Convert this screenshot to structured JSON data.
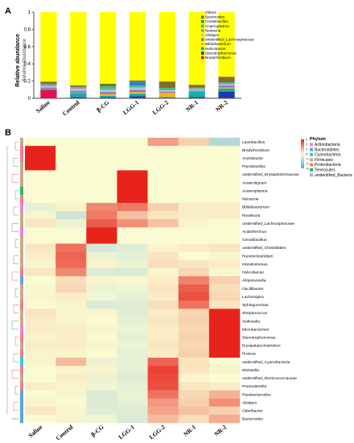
{
  "panels": {
    "a": "A",
    "b": "B"
  },
  "chart_data": [
    {
      "type": "bar",
      "stacked": true,
      "ylabel": "Relative abundance",
      "ylabel_inner": "Relative Abundance",
      "ylim": [
        0,
        1
      ],
      "yticks": [
        "0",
        "0.2",
        "0.4",
        "0.6",
        "0.8",
        "1"
      ],
      "categories": [
        "Saline",
        "Control",
        "β-CG",
        "LGG-1",
        "LGG-2",
        "NR-1",
        "NR-2"
      ],
      "series": [
        {
          "name": "Bradyrhizobium",
          "color": "#e8104c",
          "values": [
            0.095,
            0.003,
            0.003,
            0.003,
            0.003,
            0.003,
            0.003
          ]
        },
        {
          "name": "Stenotrophomonas",
          "color": "#1c3ab3",
          "values": [
            0.003,
            0.01,
            0.006,
            0.02,
            0.004,
            0.012,
            0.075
          ]
        },
        {
          "name": "Helicobacter",
          "color": "#0fb0a8",
          "values": [
            0.01,
            0.05,
            0.02,
            0.03,
            0.008,
            0.06,
            0.035
          ]
        },
        {
          "name": "Bifidobacterium",
          "color": "#f5b21a",
          "values": [
            0.004,
            0.004,
            0.02,
            0.02,
            0.05,
            0.004,
            0.012
          ]
        },
        {
          "name": "unidentified_Lachnospiraceae",
          "color": "#8f6fc4",
          "values": [
            0.012,
            0.02,
            0.022,
            0.022,
            0.012,
            0.012,
            0.02
          ]
        },
        {
          "name": "Alistipes",
          "color": "#b2bfe6",
          "values": [
            0.014,
            0.022,
            0.024,
            0.028,
            0.014,
            0.012,
            0.018
          ]
        },
        {
          "name": "Neisseria",
          "color": "#9c9c9c",
          "values": [
            0.02,
            0.016,
            0.014,
            0.012,
            0.012,
            0.012,
            0.01
          ]
        },
        {
          "name": "Anaeroplasma",
          "color": "#12d46a",
          "values": [
            0.003,
            0.006,
            0.026,
            0.014,
            0.014,
            0.006,
            0.01
          ]
        },
        {
          "name": "Cerasibacillus",
          "color": "#2f7dd6",
          "values": [
            0.003,
            0.004,
            0.003,
            0.045,
            0.003,
            0.004,
            0.003
          ]
        },
        {
          "name": "Bacteroides",
          "color": "#8a6a2a",
          "values": [
            0.03,
            0.014,
            0.03,
            0.012,
            0.075,
            0.032,
            0.064
          ]
        },
        {
          "name": "Others",
          "color": "#ffff00",
          "values": [
            0.806,
            0.851,
            0.832,
            0.794,
            0.805,
            0.845,
            0.75
          ]
        }
      ]
    },
    {
      "type": "heatmap",
      "columns": [
        "Saline",
        "Control",
        "β-CG",
        "LGG-1",
        "LGG-2",
        "NR-1",
        "NR-2"
      ],
      "rows": [
        {
          "name": "Lactobacillus",
          "phylum": "Firmicutes",
          "values": [
            0,
            0,
            0,
            0,
            1.3,
            0.6,
            -1.3
          ]
        },
        {
          "name": "Bradyrhizobium",
          "phylum": "Proteobacteria",
          "values": [
            3,
            0,
            0,
            0,
            0,
            0,
            0
          ]
        },
        {
          "name": "Acetobacter",
          "phylum": "Proteobacteria",
          "values": [
            3,
            0,
            0,
            0,
            0,
            0,
            0
          ]
        },
        {
          "name": "Paenibacillus",
          "phylum": "Firmicutes",
          "values": [
            3,
            0,
            0,
            0,
            0,
            0,
            0
          ]
        },
        {
          "name": "unidentified_Erysipelotrichaceae",
          "phylum": "Firmicutes",
          "values": [
            0,
            0,
            0,
            3,
            0,
            0,
            0
          ]
        },
        {
          "name": "Anaerotignum",
          "phylum": "Firmicutes",
          "values": [
            0,
            0,
            0,
            3,
            0,
            0,
            0
          ]
        },
        {
          "name": "Anaeroplasma",
          "phylum": "Tenericutes",
          "values": [
            0,
            0,
            0,
            3,
            0,
            0,
            0
          ]
        },
        {
          "name": "Neisseria",
          "phylum": "Proteobacteria",
          "values": [
            0,
            0,
            0,
            3,
            0,
            0,
            0
          ]
        },
        {
          "name": "Bifidobacterium",
          "phylum": "Actinobacteria",
          "values": [
            -0.4,
            0.1,
            1.6,
            1.8,
            0.6,
            0.2,
            0.2
          ]
        },
        {
          "name": "Roseburia",
          "phylum": "Firmicutes",
          "values": [
            0.1,
            -0.8,
            1.8,
            0.8,
            0.3,
            0.2,
            0.2
          ]
        },
        {
          "name": "unidentified_Lachnospiraceae",
          "phylum": "Firmicutes",
          "values": [
            0.3,
            -0.3,
            2.2,
            1.5,
            0.8,
            0.1,
            0.0
          ]
        },
        {
          "name": "Acidothermus",
          "phylum": "Actinobacteria",
          "values": [
            0,
            0,
            3,
            0,
            0,
            0,
            0
          ]
        },
        {
          "name": "Cerasibacillus",
          "phylum": "Firmicutes",
          "values": [
            0,
            0,
            3,
            0,
            0,
            0,
            0
          ]
        },
        {
          "name": "unidentified_Clostridiales",
          "phylum": "Firmicutes",
          "values": [
            0.3,
            1.9,
            -0.7,
            -0.5,
            0.1,
            0.2,
            0.3
          ]
        },
        {
          "name": "Ruminiclostridium",
          "phylum": "Firmicutes",
          "values": [
            0.2,
            2.1,
            -0.3,
            -0.4,
            0.3,
            0.0,
            0.1
          ]
        },
        {
          "name": "Intestinimonas",
          "phylum": "Firmicutes",
          "values": [
            0.1,
            2.0,
            0.1,
            -0.3,
            0.4,
            0.3,
            0.2
          ]
        },
        {
          "name": "Helicobacter",
          "phylum": "Proteobacteria",
          "values": [
            0.3,
            1.6,
            -0.6,
            -0.6,
            0.1,
            0.5,
            -0.1
          ]
        },
        {
          "name": "Alloprevotella",
          "phylum": "Bacteroidetes",
          "values": [
            0.0,
            0.4,
            0.1,
            -0.1,
            0.2,
            1.7,
            0.6
          ]
        },
        {
          "name": "Oscillibacter",
          "phylum": "Firmicutes",
          "values": [
            -0.1,
            0.5,
            -0.3,
            -0.2,
            0.3,
            2.2,
            0.4
          ]
        },
        {
          "name": "Lachnospira",
          "phylum": "Firmicutes",
          "values": [
            0.1,
            0.2,
            -0.2,
            -0.4,
            0.2,
            2.4,
            0.5
          ]
        },
        {
          "name": "Sphingomonas",
          "phylum": "Proteobacteria",
          "values": [
            0.0,
            0.1,
            -0.6,
            -0.5,
            0.4,
            1.9,
            0.3
          ]
        },
        {
          "name": "Streptococcus",
          "phylum": "Firmicutes",
          "values": [
            0.3,
            0.1,
            0.1,
            -0.5,
            0.2,
            0.5,
            3.0
          ]
        },
        {
          "name": "Veillonella",
          "phylum": "Firmicutes",
          "values": [
            0.2,
            0.1,
            0.0,
            -0.4,
            0.3,
            0.6,
            3.0
          ]
        },
        {
          "name": "Microbacterium",
          "phylum": "Actinobacteria",
          "values": [
            0.2,
            0.2,
            0.1,
            -0.3,
            0.2,
            0.5,
            3.0
          ]
        },
        {
          "name": "Stenotrophomonas",
          "phylum": "Proteobacteria",
          "values": [
            0.1,
            0.2,
            0.0,
            -0.4,
            0.2,
            0.6,
            3.0
          ]
        },
        {
          "name": "Erysipelatoclostridium",
          "phylum": "Firmicutes",
          "values": [
            0.2,
            0.2,
            0.1,
            -0.3,
            0.3,
            0.5,
            3.0
          ]
        },
        {
          "name": "Proteus",
          "phylum": "Proteobacteria",
          "values": [
            0.1,
            0.1,
            0.0,
            -0.4,
            0.2,
            0.6,
            3.0
          ]
        },
        {
          "name": "unidentified_Cyanobacteria",
          "phylum": "Cyanobacteria",
          "values": [
            0.1,
            0.9,
            -0.3,
            -0.4,
            2.1,
            0.3,
            0.0
          ]
        },
        {
          "name": "Klebsiella",
          "phylum": "Proteobacteria",
          "values": [
            0.0,
            0.1,
            0.1,
            -0.4,
            2.6,
            0.3,
            0.1
          ]
        },
        {
          "name": "unidentified_Ruminococcaceae",
          "phylum": "Firmicutes",
          "values": [
            0.0,
            0.2,
            -0.3,
            -0.5,
            2.5,
            0.1,
            0.0
          ]
        },
        {
          "name": "Parasutterella",
          "phylum": "Proteobacteria",
          "values": [
            0.2,
            0.1,
            -0.2,
            -0.4,
            2.4,
            0.3,
            0.2
          ]
        },
        {
          "name": "Parabacteroides",
          "phylum": "Bacteroidetes",
          "values": [
            0.0,
            0.1,
            -0.6,
            -0.3,
            1.9,
            0.5,
            1.0
          ]
        },
        {
          "name": "Alistipes",
          "phylum": "Bacteroidetes",
          "values": [
            0.1,
            0.0,
            -0.6,
            -0.4,
            1.4,
            0.6,
            1.5
          ]
        },
        {
          "name": "Odoribacter",
          "phylum": "Bacteroidetes",
          "values": [
            0.3,
            0.1,
            -0.5,
            -0.5,
            1.2,
            0.8,
            0.6
          ]
        },
        {
          "name": "Bacteroides",
          "phylum": "Bacteroidetes",
          "values": [
            0.0,
            0.1,
            -0.2,
            -0.6,
            0.9,
            0.4,
            1.1
          ]
        }
      ],
      "color_scale": {
        "low": "#5aa8df",
        "mid": "#fbfbd2",
        "high": "#e8231c",
        "range": [
          -3,
          3
        ]
      },
      "legend_ticks": [
        "3",
        "2",
        "1",
        "0",
        "-1",
        "-2",
        "-3"
      ],
      "phylum_legend": {
        "title": "Phylum",
        "items": [
          {
            "name": "Actinobacteria",
            "color": "#ef80d8"
          },
          {
            "name": "Bacteroidetes",
            "color": "#5fa3d8"
          },
          {
            "name": "Cyanobacteria",
            "color": "#29cde6"
          },
          {
            "name": "Firmicutes",
            "color": "#c9a985"
          },
          {
            "name": "Proteobacteria",
            "color": "#f57b8c"
          },
          {
            "name": "Tenericutes",
            "color": "#2ebd4e"
          },
          {
            "name": "unidentified_Bacteria",
            "color": "#b7a4e8"
          }
        ]
      }
    }
  ]
}
